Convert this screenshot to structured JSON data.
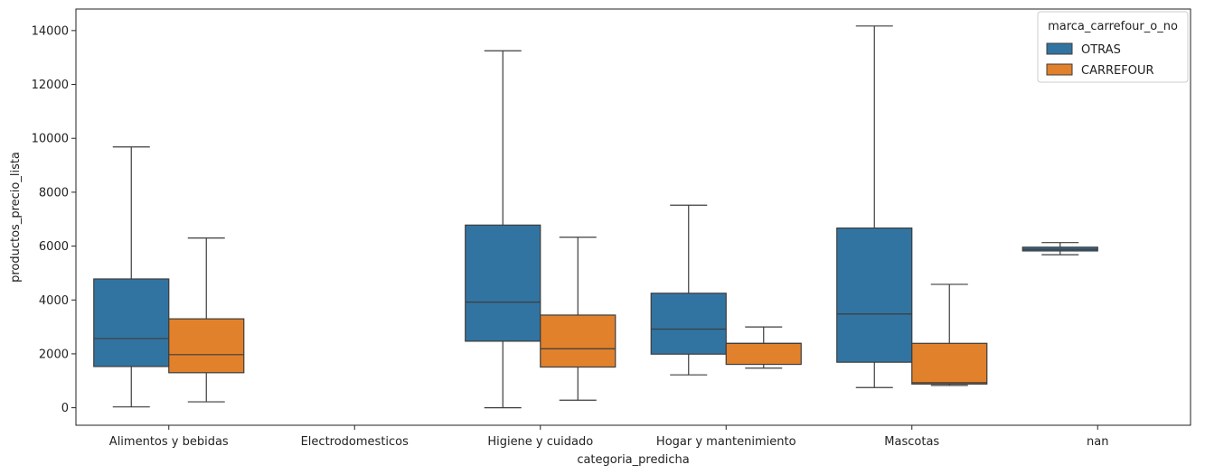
{
  "chart_data": {
    "type": "box",
    "xlabel": "categoria_predicha",
    "ylabel": "productos_precio_lista",
    "ylim": [
      -650,
      14800
    ],
    "y_ticks": [
      0,
      2000,
      4000,
      6000,
      8000,
      10000,
      12000,
      14000
    ],
    "categories": [
      "Alimentos y bebidas",
      "Electrodomesticos",
      "Higiene y cuidado",
      "Hogar y mantenimiento",
      "Mascotas",
      "nan"
    ],
    "legend": {
      "title": "marca_carrefour_o_no",
      "position": "top-right",
      "entries": [
        "OTRAS",
        "CARREFOUR"
      ]
    },
    "colors": {
      "OTRAS": "#3274a1",
      "CARREFOUR": "#e1812c",
      "edge": "#3d3d3d"
    },
    "series": [
      {
        "name": "OTRAS",
        "boxes": [
          {
            "category": "Alimentos y bebidas",
            "whislo": 30,
            "q1": 1530,
            "median": 2570,
            "q3": 4780,
            "whishi": 9680
          },
          null,
          {
            "category": "Higiene y cuidado",
            "whislo": 0,
            "q1": 2470,
            "median": 3920,
            "q3": 6780,
            "whishi": 13250
          },
          {
            "category": "Hogar y mantenimiento",
            "whislo": 1220,
            "q1": 1990,
            "median": 2920,
            "q3": 4250,
            "whishi": 7520
          },
          {
            "category": "Mascotas",
            "whislo": 750,
            "q1": 1690,
            "median": 3480,
            "q3": 6670,
            "whishi": 14170
          },
          {
            "category": "nan",
            "whislo": 5680,
            "q1": 5820,
            "median": 5880,
            "q3": 5960,
            "whishi": 6130
          }
        ]
      },
      {
        "name": "CARREFOUR",
        "boxes": [
          {
            "category": "Alimentos y bebidas",
            "whislo": 220,
            "q1": 1300,
            "median": 1970,
            "q3": 3300,
            "whishi": 6300
          },
          null,
          {
            "category": "Higiene y cuidado",
            "whislo": 280,
            "q1": 1510,
            "median": 2190,
            "q3": 3440,
            "whishi": 6330
          },
          {
            "category": "Hogar y mantenimiento",
            "whislo": 1470,
            "q1": 1610,
            "median": 2390,
            "q3": 2390,
            "whishi": 3000
          },
          {
            "category": "Mascotas",
            "whislo": 830,
            "q1": 880,
            "median": 930,
            "q3": 2390,
            "whishi": 4580
          },
          null
        ]
      }
    ]
  }
}
